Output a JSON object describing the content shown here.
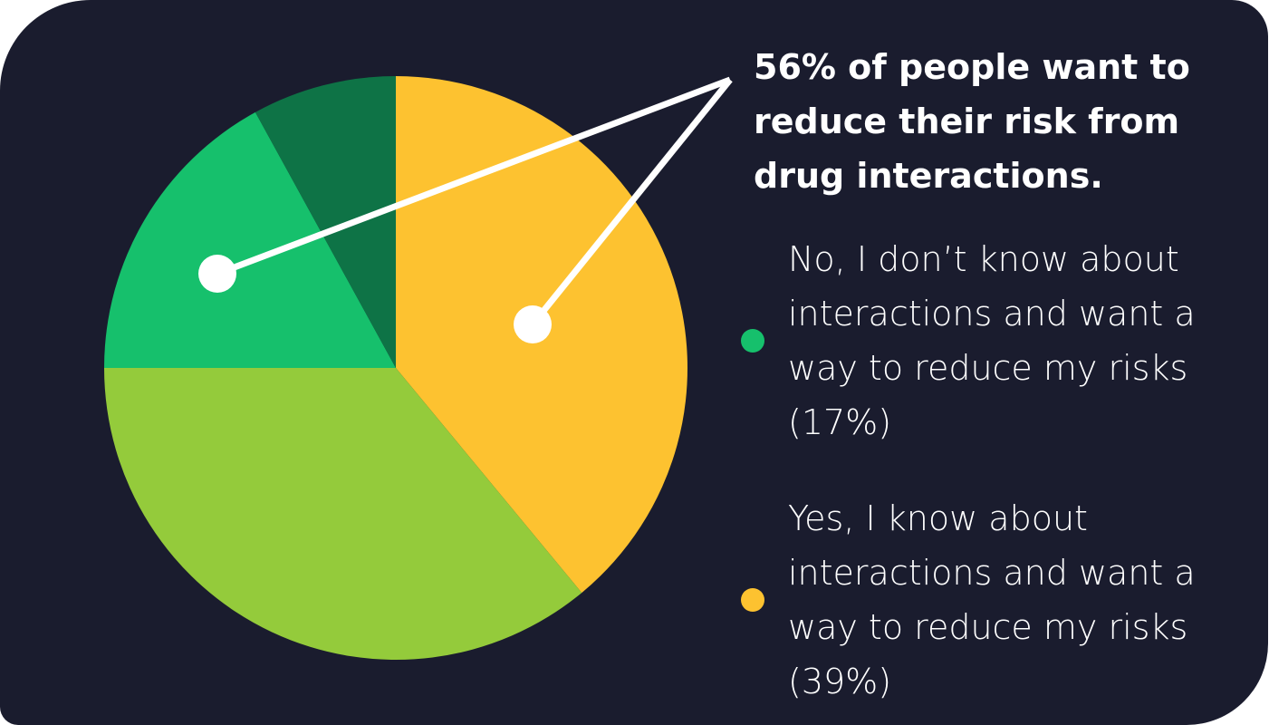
{
  "chart_data": {
    "type": "pie",
    "title": "56% of people want to reduce their risk from drug interactions.",
    "slices": [
      {
        "label": "Yes, I know about interactions and want a way to reduce my risks",
        "value": 39,
        "color": "#fdc230",
        "in_legend": true
      },
      {
        "label": "",
        "value": 36,
        "color": "#94cb3b",
        "in_legend": false
      },
      {
        "label": "No, I don’t know about interactions and want a way to reduce my risks",
        "value": 17,
        "color": "#16c06c",
        "in_legend": true
      },
      {
        "label": "",
        "value": 8,
        "color": "#0e7346",
        "in_legend": false
      }
    ],
    "start_angle_deg": 0,
    "direction": "clockwise"
  },
  "headline": "56% of people want to reduce their risk from drug interactions.",
  "legend": [
    {
      "text": "No, I don’t know about interactions and want a way to reduce my risks (17%)",
      "color": "#16c06c"
    },
    {
      "text": "Yes, I know about interactions and want a way to reduce my risks (39%)",
      "color": "#fdc230"
    }
  ]
}
